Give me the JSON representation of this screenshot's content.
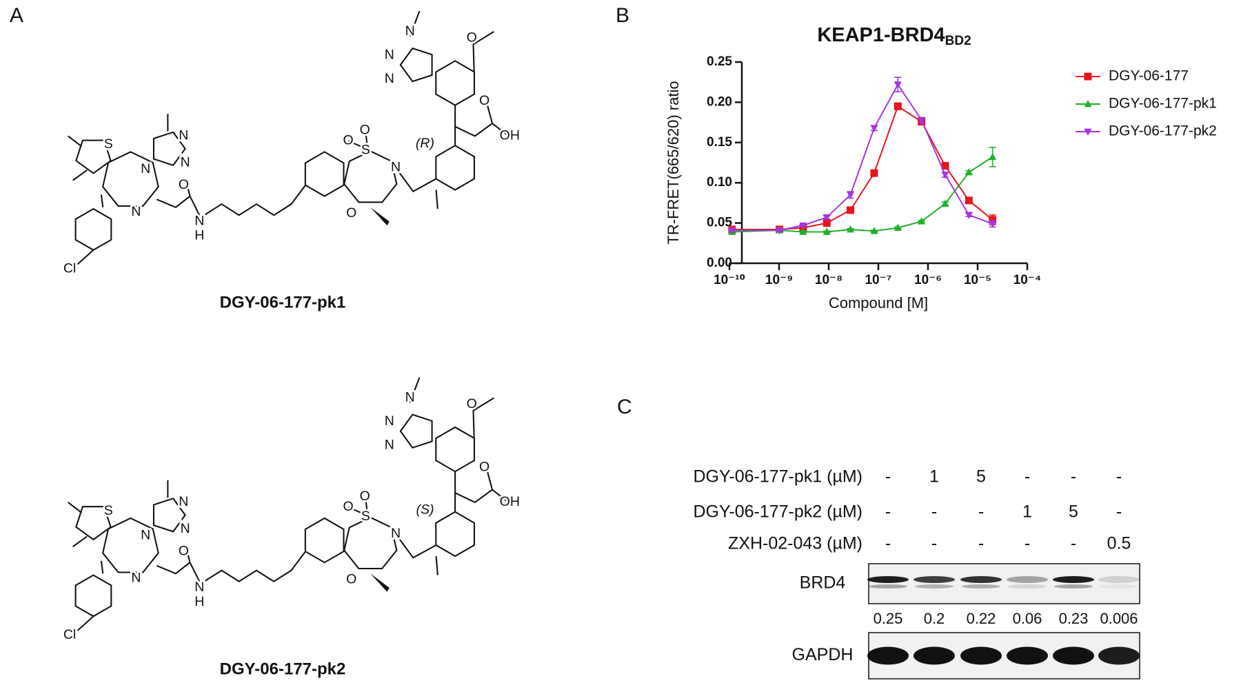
{
  "panel_labels": [
    "A",
    "B",
    "C"
  ],
  "structures": [
    {
      "name": "DGY-06-177-pk1",
      "atoms": [
        "Cl",
        "N",
        "S",
        "N",
        "N",
        "N",
        "O",
        "N",
        "H",
        "S",
        "O",
        "O",
        "N",
        "O",
        "N",
        "N",
        "N",
        "O",
        "O",
        "OH",
        "(R)"
      ]
    },
    {
      "name": "DGY-06-177-pk2",
      "atoms": [
        "Cl",
        "N",
        "S",
        "N",
        "N",
        "N",
        "O",
        "N",
        "H",
        "S",
        "O",
        "O",
        "N",
        "O",
        "N",
        "N",
        "N",
        "O",
        "O",
        "OH",
        "(S)"
      ]
    }
  ],
  "chart_data": {
    "type": "line",
    "title": "KEAP1-BRD4",
    "title_subscript": "BD2",
    "x_label": "Compound [M]",
    "y_label": "TR-FRET(665/620) ratio",
    "x": [
      1.13e-10,
      1.02e-09,
      3.05e-09,
      9.14e-09,
      2.74e-08,
      8.23e-08,
      2.47e-07,
      7.41e-07,
      2.22e-06,
      6.67e-06,
      2e-05
    ],
    "x_log": true,
    "xlim": [
      1e-10,
      0.0001
    ],
    "xticks": [
      {
        "value": 1e-10,
        "label": "10⁻¹⁰"
      },
      {
        "value": 1e-09,
        "label": "10⁻⁹"
      },
      {
        "value": 1e-08,
        "label": "10⁻⁸"
      },
      {
        "value": 1e-07,
        "label": "10⁻⁷"
      },
      {
        "value": 1e-06,
        "label": "10⁻⁶"
      },
      {
        "value": 1e-05,
        "label": "10⁻⁵"
      },
      {
        "value": 0.0001,
        "label": "10⁻⁴"
      }
    ],
    "ylim": [
      0,
      0.25
    ],
    "yticks": [
      {
        "value": 0,
        "label": "0.00"
      },
      {
        "value": 0.05,
        "label": "0.05"
      },
      {
        "value": 0.1,
        "label": "0.10"
      },
      {
        "value": 0.15,
        "label": "0.15"
      },
      {
        "value": 0.2,
        "label": "0.20"
      },
      {
        "value": 0.25,
        "label": "0.25"
      }
    ],
    "legend": "right",
    "series": [
      {
        "name": "DGY-06-177",
        "color": "#e8141b",
        "marker": "square",
        "values": [
          0.042,
          0.042,
          0.044,
          0.05,
          0.066,
          0.112,
          0.195,
          0.176,
          0.121,
          0.078,
          0.054
        ],
        "errors": [
          0.002,
          0.001,
          0.001,
          0.002,
          0.002,
          0.002,
          0.004,
          0.004,
          0.003,
          0.002,
          0.006
        ]
      },
      {
        "name": "DGY-06-177-pk1",
        "color": "#1fb02a",
        "marker": "triangle",
        "values": [
          0.039,
          0.041,
          0.039,
          0.039,
          0.042,
          0.04,
          0.044,
          0.052,
          0.074,
          0.113,
          0.132
        ],
        "errors": [
          0.002,
          0.001,
          0.001,
          0.001,
          0.001,
          0.001,
          0.001,
          0.001,
          0.002,
          0.002,
          0.012
        ]
      },
      {
        "name": "DGY-06-177-pk2",
        "color": "#a435e0",
        "marker": "triangle-down",
        "values": [
          0.041,
          0.041,
          0.047,
          0.057,
          0.085,
          0.168,
          0.222,
          0.178,
          0.11,
          0.06,
          0.049
        ],
        "errors": [
          0.001,
          0.001,
          0.001,
          0.002,
          0.004,
          0.003,
          0.009,
          0.003,
          0.003,
          0.002,
          0.004
        ]
      }
    ]
  },
  "blot": {
    "treatments": [
      {
        "label": "DGY-06-177-pk1 (µM)",
        "doses": [
          "-",
          "1",
          "5",
          "-",
          "-",
          "-"
        ]
      },
      {
        "label": "DGY-06-177-pk2 (µM)",
        "doses": [
          "-",
          "-",
          "-",
          "1",
          "5",
          "-"
        ]
      },
      {
        "label": "ZXH-02-043 (µM)",
        "doses": [
          "-",
          "-",
          "-",
          "-",
          "-",
          "0.5"
        ]
      }
    ],
    "bands": [
      {
        "label": "BRD4",
        "quantification": [
          0.25,
          0.2,
          0.22,
          0.06,
          0.23,
          0.006
        ]
      },
      {
        "label": "GAPDH"
      }
    ]
  }
}
